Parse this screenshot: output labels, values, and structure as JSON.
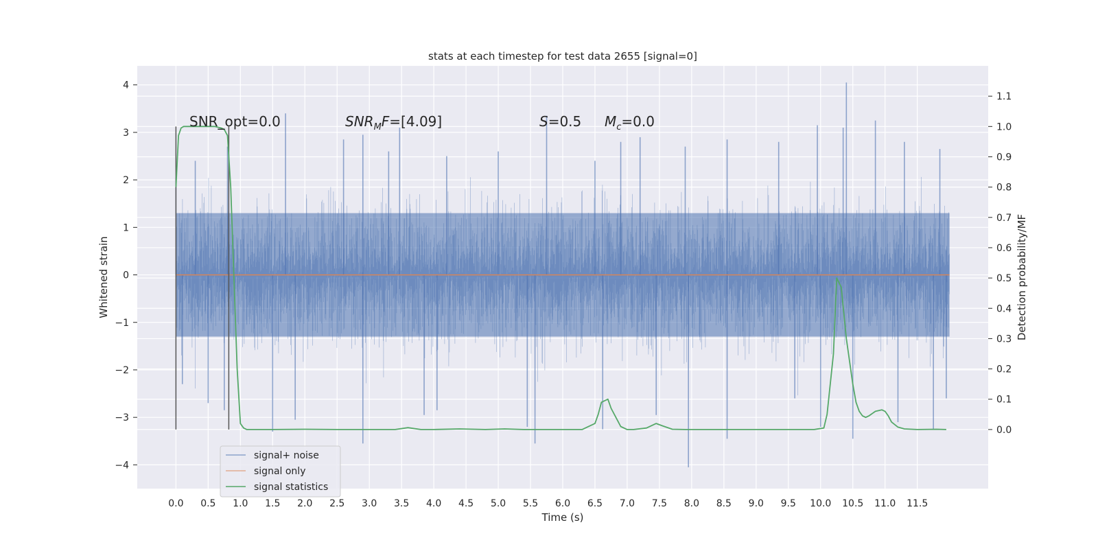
{
  "chart_data": {
    "type": "line",
    "title": "stats at each timestep for test data 2655 [signal=0]",
    "xlabel": "Time (s)",
    "ylabel": "Whitened strain",
    "y2label": "Detection probability/MF",
    "xlim": [
      -0.6,
      12.6
    ],
    "ylim": [
      -4.5,
      4.4
    ],
    "y2lim": [
      -0.195,
      1.2
    ],
    "x_ticks": [
      "0.0",
      "0.5",
      "1.0",
      "1.5",
      "2.0",
      "2.5",
      "3.0",
      "3.5",
      "4.0",
      "4.5",
      "5.0",
      "5.5",
      "6.0",
      "6.5",
      "7.0",
      "7.5",
      "8.0",
      "8.5",
      "9.0",
      "9.5",
      "10.0",
      "10.5",
      "11.0",
      "11.5"
    ],
    "y_ticks": [
      "4",
      "3",
      "2",
      "1",
      "0",
      "−1",
      "−2",
      "−3",
      "−4"
    ],
    "y2_ticks": [
      "1.1",
      "1.0",
      "0.9",
      "0.8",
      "0.7",
      "0.6",
      "0.5",
      "0.4",
      "0.3",
      "0.2",
      "0.1",
      "0.0"
    ],
    "grid": true,
    "legend_position": "lower-left",
    "colors": {
      "signal_noise": "#4c72b0",
      "signal_only": "#dd8452",
      "statistics": "#55a868",
      "background": "#eaeaf2",
      "grid": "#ffffff"
    },
    "annotations": {
      "snr_opt": "SNR_opt=0.0",
      "snr_mf_label": "SNR",
      "snr_mf_sub": "M",
      "snr_mf_f": "F",
      "snr_mf_value": "=[4.09]",
      "s_label": "S",
      "s_value": "=0.5",
      "mc_label": "M",
      "mc_sub": "c",
      "mc_value": "=0.0"
    },
    "window_lines_x": [
      0.0,
      0.82
    ],
    "series": [
      {
        "name": "signal+ noise",
        "axis": "left",
        "t_range": [
          0.0,
          12.0
        ],
        "envelope": "dense noise, typical band ±1.3, excursions up to 4.0 and down to -4.0",
        "spikes": [
          {
            "x": 0.0,
            "y": 2.05
          },
          {
            "x": 0.3,
            "y": 2.4
          },
          {
            "x": 0.8,
            "y": 2.7
          },
          {
            "x": 1.7,
            "y": 3.4
          },
          {
            "x": 2.6,
            "y": 2.85
          },
          {
            "x": 2.9,
            "y": 2.95
          },
          {
            "x": 3.3,
            "y": 2.6
          },
          {
            "x": 3.47,
            "y": 3.1
          },
          {
            "x": 4.2,
            "y": 2.5
          },
          {
            "x": 5.0,
            "y": 2.6
          },
          {
            "x": 5.75,
            "y": 3.35
          },
          {
            "x": 6.5,
            "y": 2.4
          },
          {
            "x": 6.9,
            "y": 2.8
          },
          {
            "x": 7.2,
            "y": 2.9
          },
          {
            "x": 7.9,
            "y": 2.7
          },
          {
            "x": 8.55,
            "y": 2.85
          },
          {
            "x": 9.35,
            "y": 2.8
          },
          {
            "x": 9.95,
            "y": 3.15
          },
          {
            "x": 10.35,
            "y": 3.1
          },
          {
            "x": 10.4,
            "y": 4.05
          },
          {
            "x": 10.85,
            "y": 3.25
          },
          {
            "x": 11.3,
            "y": 2.8
          },
          {
            "x": 11.85,
            "y": 2.65
          },
          {
            "x": 0.1,
            "y": -2.3
          },
          {
            "x": 0.5,
            "y": -2.7
          },
          {
            "x": 0.75,
            "y": -2.85
          },
          {
            "x": 1.5,
            "y": -3.3
          },
          {
            "x": 1.85,
            "y": -3.05
          },
          {
            "x": 2.9,
            "y": -3.55
          },
          {
            "x": 3.85,
            "y": -2.95
          },
          {
            "x": 4.05,
            "y": -2.85
          },
          {
            "x": 5.45,
            "y": -3.2
          },
          {
            "x": 5.57,
            "y": -3.55
          },
          {
            "x": 6.62,
            "y": -3.25
          },
          {
            "x": 7.45,
            "y": -2.95
          },
          {
            "x": 7.95,
            "y": -4.05
          },
          {
            "x": 8.55,
            "y": -3.45
          },
          {
            "x": 9.6,
            "y": -2.6
          },
          {
            "x": 10.0,
            "y": -3.2
          },
          {
            "x": 10.5,
            "y": -3.45
          },
          {
            "x": 11.2,
            "y": -3.1
          },
          {
            "x": 11.75,
            "y": -3.25
          },
          {
            "x": 11.95,
            "y": -2.6
          }
        ]
      },
      {
        "name": "signal only",
        "axis": "left",
        "x": [
          0.0,
          12.0
        ],
        "y": [
          0.0,
          0.0
        ]
      },
      {
        "name": "signal statistics",
        "axis": "right",
        "x": [
          0.0,
          0.04,
          0.08,
          0.12,
          0.2,
          0.3,
          0.4,
          0.5,
          0.6,
          0.7,
          0.75,
          0.8,
          0.85,
          0.9,
          0.95,
          1.0,
          1.05,
          1.1,
          1.2,
          1.5,
          2.0,
          2.5,
          3.0,
          3.4,
          3.6,
          3.8,
          4.0,
          4.4,
          4.8,
          5.1,
          5.4,
          5.8,
          6.0,
          6.3,
          6.5,
          6.55,
          6.6,
          6.7,
          6.75,
          6.85,
          6.9,
          7.0,
          7.1,
          7.3,
          7.45,
          7.55,
          7.7,
          7.9,
          8.2,
          8.6,
          9.0,
          9.5,
          9.9,
          10.05,
          10.1,
          10.2,
          10.25,
          10.32,
          10.4,
          10.5,
          10.55,
          10.6,
          10.65,
          10.7,
          10.75,
          10.85,
          10.95,
          11.0,
          11.05,
          11.1,
          11.2,
          11.3,
          11.5,
          11.8,
          11.95
        ],
        "y": [
          0.8,
          0.97,
          0.995,
          1.0,
          1.0,
          1.0,
          1.0,
          1.0,
          1.0,
          0.995,
          0.99,
          0.97,
          0.8,
          0.5,
          0.2,
          0.02,
          0.005,
          0.0,
          0.0,
          0.0,
          0.001,
          0.0,
          0.0,
          0.0,
          0.006,
          0.0,
          0.0,
          0.002,
          0.0,
          0.002,
          0.0,
          0.0,
          0.0,
          0.0,
          0.02,
          0.05,
          0.09,
          0.1,
          0.07,
          0.03,
          0.01,
          0.0,
          0.0,
          0.005,
          0.02,
          0.012,
          0.001,
          0.0,
          0.0,
          0.0,
          0.0,
          0.0,
          0.0,
          0.005,
          0.05,
          0.25,
          0.5,
          0.47,
          0.3,
          0.15,
          0.09,
          0.06,
          0.045,
          0.04,
          0.045,
          0.06,
          0.065,
          0.06,
          0.045,
          0.025,
          0.008,
          0.002,
          0.0,
          0.001,
          0.0
        ]
      }
    ]
  }
}
